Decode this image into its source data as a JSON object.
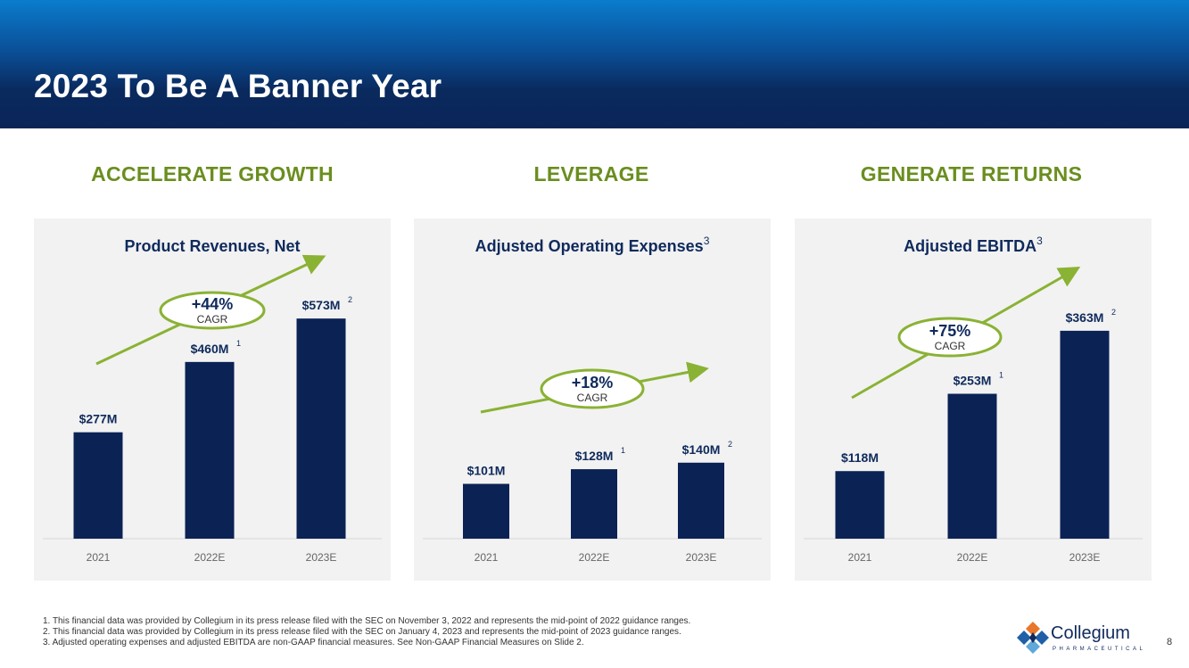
{
  "slide": {
    "title": "2023 To Be A Banner Year",
    "page_number": "8",
    "colors": {
      "header": "#0a2458",
      "bar": "#0b2255",
      "accent": "#8ab234",
      "heading": "#6a8e1f"
    }
  },
  "sections": [
    "ACCELERATE GROWTH",
    "LEVERAGE",
    "GENERATE RETURNS"
  ],
  "chart_data": [
    {
      "type": "bar",
      "title": "Product Revenues, Net",
      "title_sup": "",
      "categories": [
        "2021",
        "2022E",
        "2023E"
      ],
      "values": [
        277,
        460,
        573
      ],
      "value_labels": [
        "$277M",
        "$460M",
        "$573M"
      ],
      "label_sups": [
        "",
        "1",
        "2"
      ],
      "cagr": {
        "value": "+44%",
        "label": "CAGR"
      },
      "ylim": [
        0,
        650
      ],
      "xlabel": "",
      "ylabel": "",
      "grid": false
    },
    {
      "type": "bar",
      "title": "Adjusted Operating Expenses",
      "title_sup": "3",
      "categories": [
        "2021",
        "2022E",
        "2023E"
      ],
      "values": [
        101,
        128,
        140
      ],
      "value_labels": [
        "$101M",
        "$128M",
        "$140M"
      ],
      "label_sups": [
        "",
        "1",
        "2"
      ],
      "cagr": {
        "value": "+18%",
        "label": "CAGR"
      },
      "ylim": [
        0,
        460
      ],
      "xlabel": "",
      "ylabel": "",
      "grid": false
    },
    {
      "type": "bar",
      "title": "Adjusted EBITDA",
      "title_sup": "3",
      "categories": [
        "2021",
        "2022E",
        "2023E"
      ],
      "values": [
        118,
        253,
        363
      ],
      "value_labels": [
        "$118M",
        "$253M",
        "$363M"
      ],
      "label_sups": [
        "",
        "1",
        "2"
      ],
      "cagr": {
        "value": "+75%",
        "label": "CAGR"
      },
      "ylim": [
        0,
        436
      ],
      "xlabel": "",
      "ylabel": "",
      "grid": false
    }
  ],
  "footnotes": [
    "1.   This financial data was provided by Collegium in its press release filed with the SEC on November 3, 2022 and represents the mid-point of 2022 guidance ranges.",
    "2.   This financial data was provided by Collegium in its press release filed with the SEC on January 4, 2023 and represents the mid-point of 2023 guidance ranges.",
    "3.   Adjusted operating expenses and adjusted EBITDA are non-GAAP financial measures. See Non-GAAP Financial Measures on Slide 2."
  ],
  "logo": {
    "name": "Collegium",
    "sub": "PHARMACEUTICAL",
    "icon": "collegium-logo-icon"
  }
}
